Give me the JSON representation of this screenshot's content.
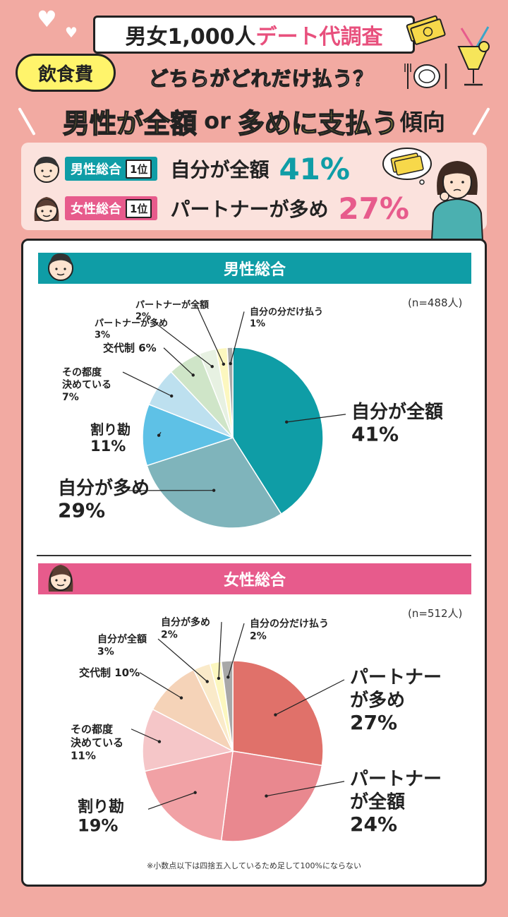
{
  "header": {
    "title_main": "男女1,000人",
    "title_accent": "デート代調査",
    "badge": "飲食費",
    "question": "どちらがどれだけ払う？",
    "headline_part1": "男性が全額",
    "headline_or": "or",
    "headline_part2": "多めに支払う",
    "headline_suffix": "傾向"
  },
  "summary": {
    "male": {
      "group": "男性総合",
      "rank": "1位",
      "answer": "自分が全額",
      "percent": "41%"
    },
    "female": {
      "group": "女性総合",
      "rank": "1位",
      "answer": "パートナーが多め",
      "percent": "27%"
    }
  },
  "icons": [
    "heart-icon",
    "money-bundle-icon",
    "plate-cutlery-icon",
    "tropical-drink-icon",
    "man-face-icon",
    "woman-face-icon",
    "thinking-woman-illustration"
  ],
  "footnote": "※小数点以下は四捨五入しているため足して100%にならない",
  "chart_data": [
    {
      "type": "pie",
      "title": "男性総合",
      "sample": "(n=488人)",
      "unit": "%",
      "slices": [
        {
          "label": "自分が全額",
          "value": 41,
          "color": "#0f9da6"
        },
        {
          "label": "自分が多め",
          "value": 29,
          "color": "#7fb4bb"
        },
        {
          "label": "割り勘",
          "value": 11,
          "color": "#5ec1e6"
        },
        {
          "label": "その都度決めている",
          "value": 7,
          "color": "#bde0ef"
        },
        {
          "label": "交代制",
          "value": 6,
          "color": "#cfe5c8"
        },
        {
          "label": "パートナーが多め",
          "value": 3,
          "color": "#e7f1e2"
        },
        {
          "label": "パートナーが全額",
          "value": 2,
          "color": "#fcf7bf"
        },
        {
          "label": "自分の分だけ払う",
          "value": 1,
          "color": "#a8a8a8"
        }
      ]
    },
    {
      "type": "pie",
      "title": "女性総合",
      "sample": "(n=512人)",
      "unit": "%",
      "slices": [
        {
          "label": "パートナーが多め",
          "value": 27,
          "color": "#e0716a"
        },
        {
          "label": "パートナーが全額",
          "value": 24,
          "color": "#e9888f"
        },
        {
          "label": "割り勘",
          "value": 19,
          "color": "#f1a1a5"
        },
        {
          "label": "その都度決めている",
          "value": 11,
          "color": "#f5c6c8"
        },
        {
          "label": "交代制",
          "value": 10,
          "color": "#f5d3b8"
        },
        {
          "label": "自分が全額",
          "value": 3,
          "color": "#faeac9"
        },
        {
          "label": "自分が多め",
          "value": 2,
          "color": "#fcf7bf"
        },
        {
          "label": "自分の分だけ払う",
          "value": 2,
          "color": "#a8a8a8"
        }
      ]
    }
  ]
}
